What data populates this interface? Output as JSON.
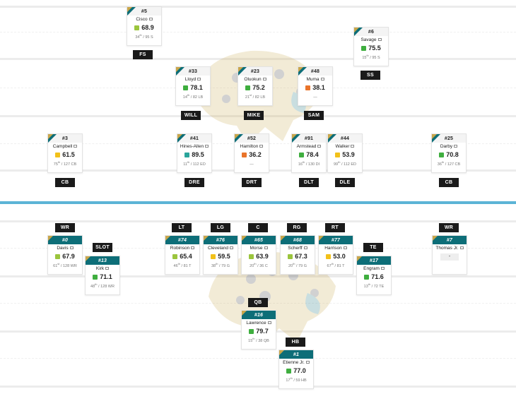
{
  "colors": {
    "team_teal": "#0d6e78",
    "team_gold": "#c9a64a",
    "divider": "#5cb4d6",
    "grade_green": "#3fae3f",
    "grade_lime": "#9bc53d",
    "grade_yellow": "#f2c11a",
    "grade_orange": "#e9742b",
    "grade_teal": "#2aa59b"
  },
  "defense": {
    "players": [
      {
        "num": "#5",
        "name": "Cisco",
        "grade": "68.9",
        "grade_color": "lime",
        "rank": "34",
        "rank_suffix": "th",
        "rank_rest": " / 95 S",
        "pos": "FS"
      },
      {
        "num": "#6",
        "name": "Savage",
        "grade": "75.5",
        "grade_color": "green",
        "rank": "15",
        "rank_suffix": "th",
        "rank_rest": " / 95 S",
        "pos": "SS"
      },
      {
        "num": "#33",
        "name": "Lloyd",
        "grade": "78.1",
        "grade_color": "green",
        "rank": "14",
        "rank_suffix": "th",
        "rank_rest": " / 82 LB",
        "pos": "WILL"
      },
      {
        "num": "#23",
        "name": "Oluokun",
        "grade": "75.2",
        "grade_color": "green",
        "rank": "21",
        "rank_suffix": "st",
        "rank_rest": " / 82 LB",
        "pos": "MIKE"
      },
      {
        "num": "#48",
        "name": "Muma",
        "grade": "38.1",
        "grade_color": "orange",
        "rank": "—",
        "rank_suffix": "",
        "rank_rest": "",
        "pos": "SAM"
      },
      {
        "num": "#3",
        "name": "Campbell",
        "grade": "61.5",
        "grade_color": "yellow",
        "rank": "75",
        "rank_suffix": "th",
        "rank_rest": " / 127 CB",
        "pos": "CB"
      },
      {
        "num": "#41",
        "name": "Hines-Allen",
        "grade": "89.5",
        "grade_color": "teal",
        "rank": "11",
        "rank_suffix": "th",
        "rank_rest": " / 112 ED",
        "pos": "DRE"
      },
      {
        "num": "#52",
        "name": "Hamilton",
        "grade": "36.2",
        "grade_color": "orange",
        "rank": "—",
        "rank_suffix": "",
        "rank_rest": "",
        "pos": "DRT"
      },
      {
        "num": "#91",
        "name": "Armstead",
        "grade": "78.4",
        "grade_color": "green",
        "rank": "16",
        "rank_suffix": "th",
        "rank_rest": " / 130 DI",
        "pos": "DLT"
      },
      {
        "num": "#44",
        "name": "Walker",
        "grade": "53.9",
        "grade_color": "yellow",
        "rank": "99",
        "rank_suffix": "th",
        "rank_rest": " / 112 ED",
        "pos": "DLE"
      },
      {
        "num": "#25",
        "name": "Darby",
        "grade": "70.8",
        "grade_color": "green",
        "rank": "36",
        "rank_suffix": "th",
        "rank_rest": " / 127 CB",
        "pos": "CB"
      }
    ]
  },
  "offense": {
    "players": [
      {
        "num": "#0",
        "name": "Davis",
        "grade": "67.9",
        "grade_color": "lime",
        "rank": "61",
        "rank_suffix": "st",
        "rank_rest": " / 128 WR",
        "pos": "WR"
      },
      {
        "num": "#13",
        "name": "Kirk",
        "grade": "71.1",
        "grade_color": "green",
        "rank": "48",
        "rank_suffix": "th",
        "rank_rest": " / 128 WR",
        "pos": "SLOT"
      },
      {
        "num": "#74",
        "name": "Robinson",
        "grade": "65.4",
        "grade_color": "lime",
        "rank": "46",
        "rank_suffix": "th",
        "rank_rest": " / 81 T",
        "pos": "LT"
      },
      {
        "num": "#76",
        "name": "Cleveland",
        "grade": "59.5",
        "grade_color": "yellow",
        "rank": "38",
        "rank_suffix": "th",
        "rank_rest": " / 79 G",
        "pos": "LG"
      },
      {
        "num": "#65",
        "name": "Morse",
        "grade": "63.9",
        "grade_color": "lime",
        "rank": "20",
        "rank_suffix": "th",
        "rank_rest": " / 36 C",
        "pos": "C"
      },
      {
        "num": "#68",
        "name": "Scherff",
        "grade": "67.3",
        "grade_color": "lime",
        "rank": "20",
        "rank_suffix": "th",
        "rank_rest": " / 79 G",
        "pos": "RG"
      },
      {
        "num": "#77",
        "name": "Harrison",
        "grade": "53.0",
        "grade_color": "yellow",
        "rank": "67",
        "rank_suffix": "th",
        "rank_rest": " / 81 T",
        "pos": "RT"
      },
      {
        "num": "#17",
        "name": "Engram",
        "grade": "71.6",
        "grade_color": "green",
        "rank": "13",
        "rank_suffix": "th",
        "rank_rest": " / 72 TE",
        "pos": "TE"
      },
      {
        "num": "#7",
        "name": "Thomas Jr.",
        "grade": "-",
        "grade_color": "none",
        "rank": "",
        "rank_suffix": "",
        "rank_rest": "",
        "pos": "WR"
      },
      {
        "num": "#16",
        "name": "Lawrence",
        "grade": "79.7",
        "grade_color": "green",
        "rank": "15",
        "rank_suffix": "th",
        "rank_rest": " / 38 QB",
        "pos": "QB"
      },
      {
        "num": "#1",
        "name": "Etienne Jr.",
        "grade": "77.0",
        "grade_color": "green",
        "rank": "17",
        "rank_suffix": "th",
        "rank_rest": " / 59 HB",
        "pos": "HB"
      }
    ]
  }
}
